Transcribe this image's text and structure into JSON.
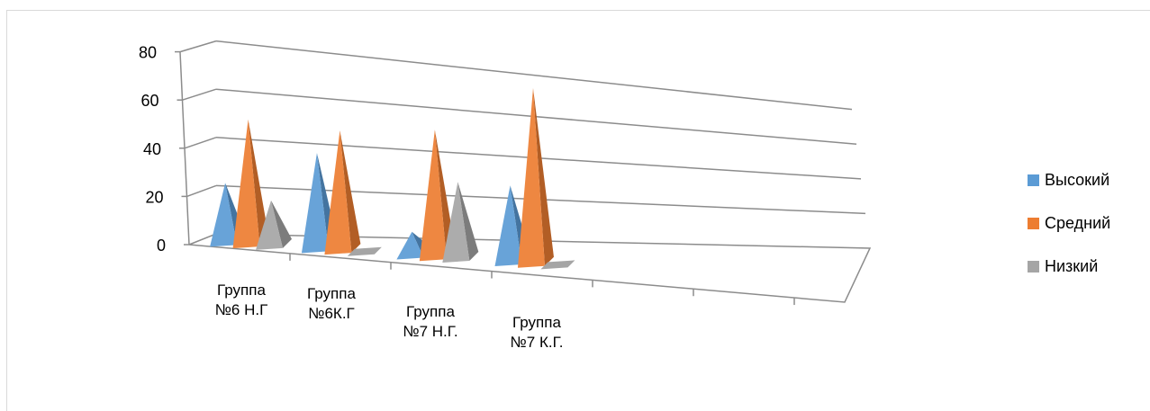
{
  "chart_data": {
    "type": "bar",
    "style": "3d-pyramid",
    "categories": [
      "Группа №6 Н.Г",
      "Группа №6К.Г",
      "Группа №7 Н.Г.",
      "Группа №7 К.Г."
    ],
    "category_lines": [
      [
        "Группа",
        "№6 Н.Г"
      ],
      [
        "Группа",
        "№6К.Г"
      ],
      [
        "Группа",
        "№7 Н.Г."
      ],
      [
        "Группа",
        "№7 К.Г."
      ]
    ],
    "series": [
      {
        "name": "Высокий",
        "values": [
          25,
          40,
          10,
          32
        ],
        "color": "#5b9bd5"
      },
      {
        "name": "Средний",
        "values": [
          52,
          50,
          53,
          73
        ],
        "color": "#ed7d31"
      },
      {
        "name": "Низкий",
        "values": [
          19,
          0,
          32,
          0
        ],
        "color": "#a5a5a5"
      }
    ],
    "yticks": [
      0,
      20,
      40,
      60,
      80
    ],
    "ylim": [
      0,
      80
    ],
    "grid": true,
    "legend_position": "right"
  }
}
